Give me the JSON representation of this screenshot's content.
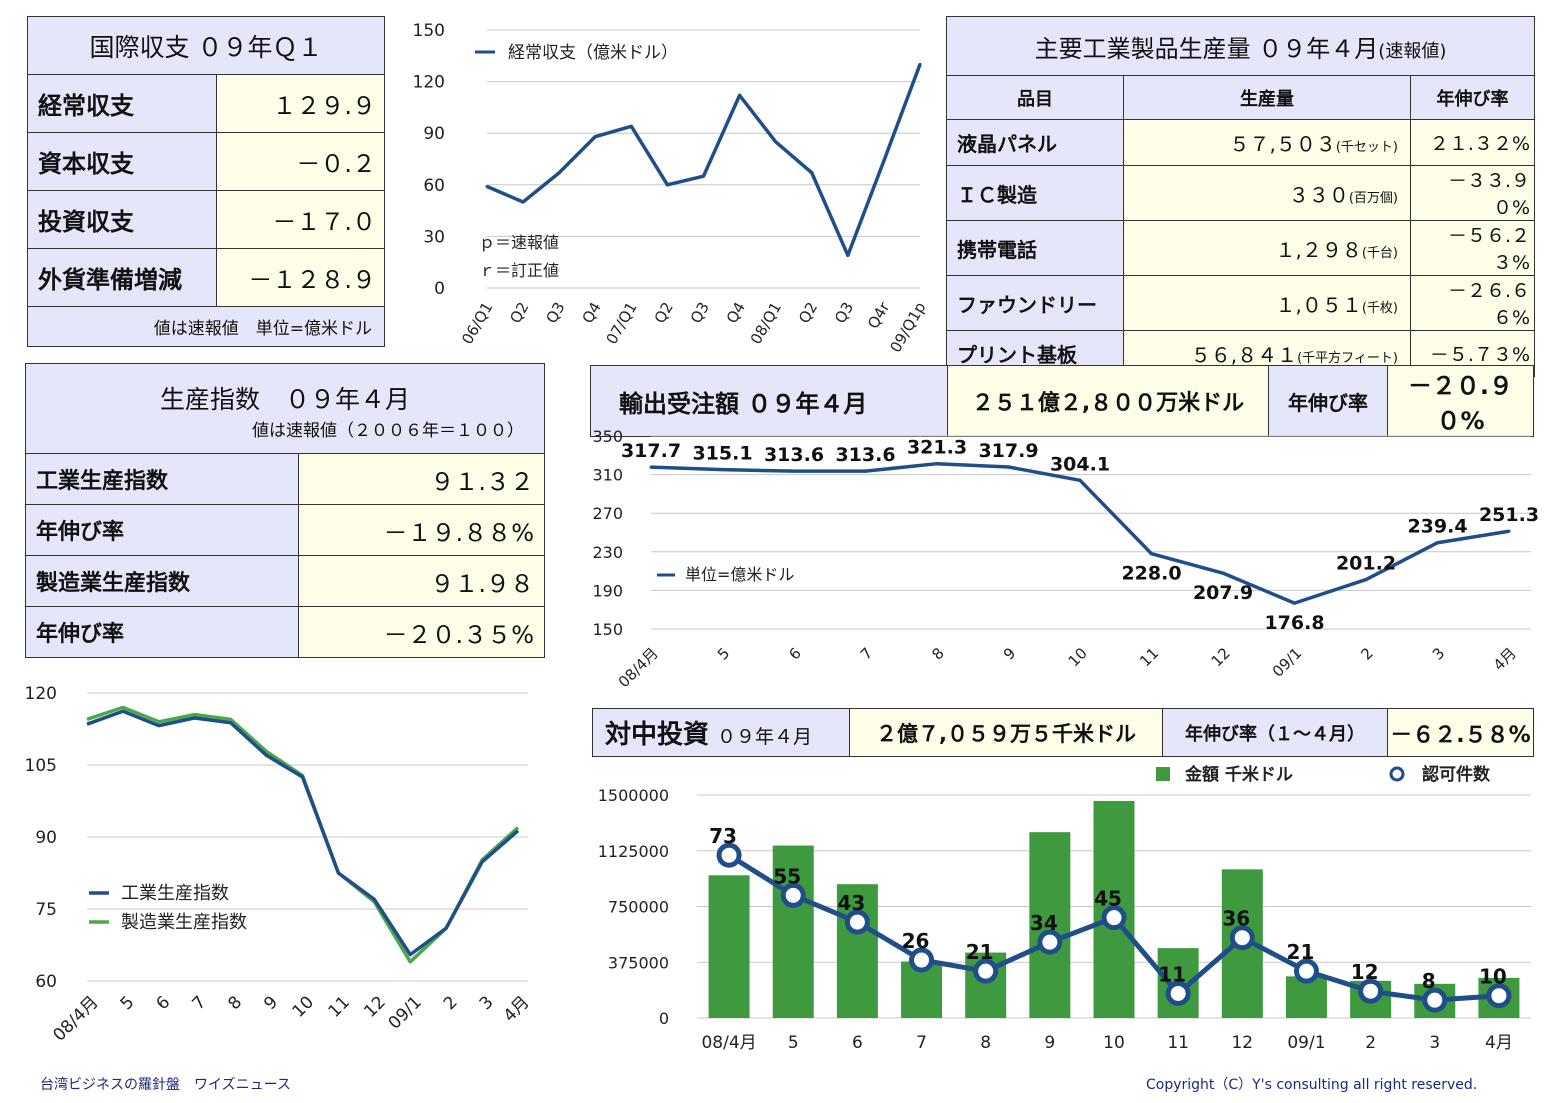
{
  "balance": {
    "title": "国際収支 ０９年Ｑ１",
    "rows": [
      {
        "label": "経常収支",
        "value": "１２９.９"
      },
      {
        "label": "資本収支",
        "value": "－０.２"
      },
      {
        "label": "投資収支",
        "value": "－１７.０"
      },
      {
        "label": "外貨準備増減",
        "value": "－１２８.９"
      }
    ],
    "note": "値は速報値　単位=億米ドル"
  },
  "production": {
    "title": "主要工業製品生産量 ０９年４月",
    "title_suffix": "(速報値)",
    "headers": [
      "品目",
      "生産量",
      "年伸び率"
    ],
    "rows": [
      {
        "item": "液晶パネル",
        "qty": "５７,５０３",
        "unit": "(千セット)",
        "growth": "２１.３２%"
      },
      {
        "item": "ＩＣ製造",
        "qty": "３３０",
        "unit": "(百万個)",
        "growth": "－３３.９０%"
      },
      {
        "item": "携帯電話",
        "qty": "１,２９８",
        "unit": "(千台)",
        "growth": "－５６.２３%"
      },
      {
        "item": "ファウンドリー",
        "qty": "１,０５１",
        "unit": "(千枚)",
        "growth": "－２６.６６%"
      },
      {
        "item": "プリント基板",
        "qty": "５６,８４１",
        "unit": "(千平方フィート)",
        "growth": "－５.７３%"
      }
    ]
  },
  "index": {
    "title": "生産指数　０９年４月",
    "subtitle": "値は速報値（２００６年＝１００）",
    "rows": [
      {
        "label": "工業生産指数",
        "value": "９１.３２"
      },
      {
        "label": "年伸び率",
        "value": "－１９.８８%"
      },
      {
        "label": "製造業生産指数",
        "value": "９１.９８"
      },
      {
        "label": "年伸び率",
        "value": "－２０.３５%"
      }
    ]
  },
  "export": {
    "label": "輸出受注額 ０９年４月",
    "amount": "２５１億２,８００万米ドル",
    "growth_label": "年伸び率",
    "growth": "－２０.９０%"
  },
  "invest": {
    "label": "対中投資",
    "label_suffix": "０９年４月",
    "amount": "２億７,０５９万５千米ドル",
    "growth_label": "年伸び率（１～４月）",
    "growth": "－６２.５８%"
  },
  "footer": {
    "left": "台湾ビジネスの羅針盤　ワイズニュース",
    "right": "Copyright（C）Y's consulting all right reserved."
  },
  "colors": {
    "line": "#1f4e8a",
    "green": "#3f9a3f",
    "mfg": "#4aa84a"
  },
  "chart_data": [
    {
      "id": "current-account",
      "type": "line",
      "categories": [
        "06/Q1",
        "Q2",
        "Q3",
        "Q4",
        "07/Q1",
        "Q2",
        "Q3",
        "Q4",
        "08/Q1",
        "Q2",
        "Q3",
        "Q4r",
        "09/Q1p"
      ],
      "series": [
        {
          "name": "経常収支（億米ドル）",
          "values": [
            59,
            50,
            67,
            88,
            94,
            60,
            65,
            112,
            85,
            67,
            19,
            74,
            130
          ]
        }
      ],
      "ylim": [
        0,
        150
      ],
      "yticks": [
        0,
        30,
        60,
        90,
        120,
        150
      ],
      "annotations": [
        "ｐ＝速報値",
        "ｒ＝訂正値"
      ],
      "legend": "top-left"
    },
    {
      "id": "export-orders",
      "type": "line",
      "categories": [
        "08/4月",
        "5",
        "6",
        "7",
        "8",
        "9",
        "10",
        "11",
        "12",
        "09/1",
        "2",
        "3",
        "4月"
      ],
      "series": [
        {
          "name": "単位=億米ドル",
          "values": [
            317.7,
            315.1,
            313.6,
            313.6,
            321.3,
            317.9,
            304.1,
            228.0,
            207.9,
            176.8,
            201.2,
            239.4,
            251.3
          ]
        }
      ],
      "ylim": [
        150,
        350
      ],
      "yticks": [
        150,
        190,
        230,
        270,
        310,
        350
      ],
      "legend": "left"
    },
    {
      "id": "production-index",
      "type": "line",
      "categories": [
        "08/4月",
        "5",
        "6",
        "7",
        "8",
        "9",
        "10",
        "11",
        "12",
        "09/1",
        "2",
        "3",
        "4月"
      ],
      "series": [
        {
          "name": "工業生産指数",
          "values": [
            113.5,
            116.2,
            113.2,
            114.8,
            113.8,
            107.0,
            102.5,
            82.5,
            77.0,
            65.5,
            71.0,
            84.8,
            91.32
          ]
        },
        {
          "name": "製造業生産指数",
          "values": [
            114.5,
            117.0,
            114.0,
            115.5,
            114.5,
            107.8,
            102.8,
            82.5,
            76.5,
            64.0,
            71.0,
            85.2,
            91.98
          ]
        }
      ],
      "ylim": [
        60,
        120
      ],
      "yticks": [
        60,
        75,
        90,
        105,
        120
      ],
      "legend": "left"
    },
    {
      "id": "china-investment",
      "type": "bar",
      "categories": [
        "08/4月",
        "5",
        "6",
        "7",
        "8",
        "9",
        "10",
        "11",
        "12",
        "09/1",
        "2",
        "3",
        "4月"
      ],
      "series": [
        {
          "name": "金額 千米ドル",
          "type": "bar",
          "values": [
            960000,
            1160000,
            900000,
            380000,
            440000,
            1250000,
            1460000,
            470000,
            1000000,
            280000,
            250000,
            230000,
            270000
          ]
        },
        {
          "name": "認可件数",
          "type": "line",
          "values": [
            73,
            55,
            43,
            26,
            21,
            34,
            45,
            11,
            36,
            21,
            12,
            8,
            10
          ]
        }
      ],
      "ylim": [
        0,
        1500000
      ],
      "yticks": [
        0,
        375000,
        750000,
        1125000,
        1500000
      ],
      "legend": "top"
    }
  ]
}
